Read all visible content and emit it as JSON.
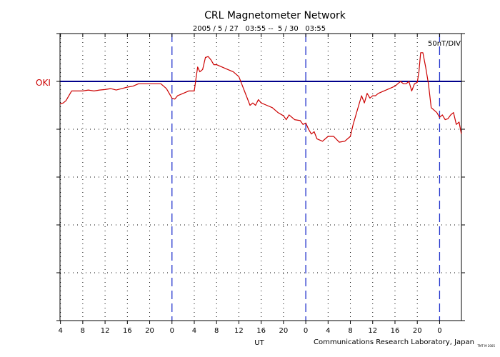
{
  "chart_data": {
    "type": "line",
    "title": "CRL Magnetometer Network",
    "subtitle": "2005 / 5 / 27   03:55 --  5 / 30   03:55",
    "scale_label": "50nT/DIV",
    "station_label": "OKI",
    "xlabel": "UT",
    "credit": "Communications Research Laboratory, Japan",
    "tiny_note": "TMT  M  2005",
    "x_unit": "hours UT (continuous from 2005-05-27 00:00)",
    "xlim": [
      3.9167,
      75.9167
    ],
    "x_ticks": [
      4,
      8,
      12,
      16,
      20,
      24,
      28,
      32,
      36,
      40,
      44,
      48,
      52,
      56,
      60,
      64,
      68,
      72
    ],
    "x_tick_labels": [
      "4",
      "8",
      "12",
      "16",
      "20",
      "0",
      "4",
      "8",
      "12",
      "16",
      "20",
      "0",
      "4",
      "8",
      "12",
      "16",
      "20",
      "0"
    ],
    "day_boundaries": [
      24,
      48,
      72
    ],
    "y_unit": "divisions relative to baseline (1 div = 50 nT)",
    "ylim": [
      -5,
      1
    ],
    "y_ticks": [
      1,
      0,
      -1,
      -2,
      -3,
      -4,
      -5
    ],
    "baseline": 0,
    "grid": true,
    "series": [
      {
        "name": "OKI",
        "color": "#cc0000",
        "x": [
          3.92,
          4.5,
          5.0,
          5.5,
          6.0,
          7.0,
          8.0,
          9.0,
          10.0,
          11.0,
          12.0,
          13.0,
          14.0,
          15.0,
          16.0,
          17.0,
          18.0,
          19.0,
          20.0,
          21.0,
          22.0,
          22.5,
          23.0,
          23.5,
          24.0,
          24.5,
          25.0,
          26.0,
          27.0,
          28.0,
          28.3,
          28.6,
          29.0,
          29.5,
          30.0,
          30.5,
          31.0,
          31.5,
          32.0,
          33.0,
          34.0,
          35.0,
          36.0,
          36.5,
          37.0,
          37.5,
          38.0,
          38.5,
          39.0,
          39.5,
          40.0,
          41.0,
          42.0,
          43.0,
          44.0,
          44.5,
          45.0,
          46.0,
          47.0,
          47.5,
          48.0,
          48.5,
          49.0,
          49.5,
          50.0,
          51.0,
          52.0,
          53.0,
          54.0,
          55.0,
          56.0,
          56.5,
          57.0,
          57.5,
          58.0,
          58.5,
          59.0,
          59.5,
          60.0,
          60.5,
          61.0,
          62.0,
          63.0,
          64.0,
          64.5,
          65.0,
          65.5,
          66.0,
          66.5,
          67.0,
          67.5,
          68.0,
          68.3,
          68.6,
          69.0,
          69.5,
          70.0,
          70.5,
          71.0,
          71.5,
          72.0,
          72.5,
          73.0,
          73.5,
          74.0,
          74.5,
          75.0,
          75.5,
          75.9
        ],
        "y": [
          -0.47,
          -0.45,
          -0.4,
          -0.3,
          -0.2,
          -0.2,
          -0.2,
          -0.18,
          -0.2,
          -0.18,
          -0.17,
          -0.15,
          -0.18,
          -0.15,
          -0.12,
          -0.1,
          -0.05,
          -0.05,
          -0.05,
          -0.05,
          -0.05,
          -0.1,
          -0.15,
          -0.25,
          -0.35,
          -0.37,
          -0.3,
          -0.25,
          -0.2,
          -0.2,
          0.05,
          0.3,
          0.2,
          0.25,
          0.5,
          0.52,
          0.45,
          0.35,
          0.35,
          0.3,
          0.25,
          0.2,
          0.1,
          -0.05,
          -0.2,
          -0.35,
          -0.5,
          -0.45,
          -0.5,
          -0.38,
          -0.45,
          -0.5,
          -0.55,
          -0.65,
          -0.72,
          -0.8,
          -0.7,
          -0.8,
          -0.82,
          -0.9,
          -0.87,
          -1.0,
          -1.1,
          -1.05,
          -1.2,
          -1.25,
          -1.15,
          -1.15,
          -1.27,
          -1.25,
          -1.15,
          -0.9,
          -0.7,
          -0.5,
          -0.3,
          -0.45,
          -0.25,
          -0.35,
          -0.3,
          -0.3,
          -0.25,
          -0.2,
          -0.15,
          -0.1,
          -0.05,
          0.0,
          -0.05,
          -0.05,
          0.0,
          -0.2,
          -0.05,
          -0.02,
          0.2,
          0.6,
          0.6,
          0.3,
          -0.05,
          -0.55,
          -0.6,
          -0.65,
          -0.75,
          -0.7,
          -0.8,
          -0.78,
          -0.7,
          -0.65,
          -0.9,
          -0.85,
          -1.1
        ]
      }
    ]
  }
}
